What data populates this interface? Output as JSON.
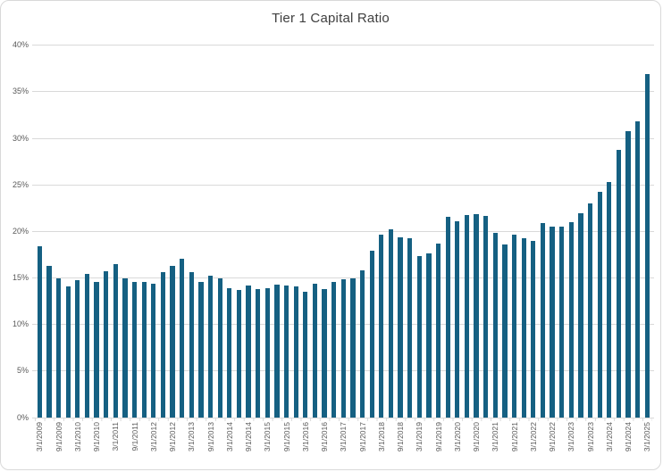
{
  "chart_data": {
    "type": "bar",
    "title": "Tier 1 Capital Ratio",
    "categories": [
      "3/1/2009",
      "6/1/2009",
      "9/1/2009",
      "12/1/2009",
      "3/1/2010",
      "6/1/2010",
      "9/1/2010",
      "12/1/2010",
      "3/1/2011",
      "6/1/2011",
      "9/1/2011",
      "12/1/2011",
      "3/1/2012",
      "6/1/2012",
      "9/1/2012",
      "12/1/2012",
      "3/1/2013",
      "6/1/2013",
      "9/1/2013",
      "12/1/2013",
      "3/1/2014",
      "6/1/2014",
      "9/1/2014",
      "12/1/2014",
      "3/1/2015",
      "6/1/2015",
      "9/1/2015",
      "12/1/2015",
      "3/1/2016",
      "6/1/2016",
      "9/1/2016",
      "12/1/2016",
      "3/1/2017",
      "6/1/2017",
      "9/1/2017",
      "12/1/2017",
      "3/1/2018",
      "6/1/2018",
      "9/1/2018",
      "12/1/2018",
      "3/1/2019",
      "6/1/2019",
      "9/1/2019",
      "12/1/2019",
      "3/1/2020",
      "6/1/2020",
      "9/1/2020",
      "12/1/2020",
      "3/1/2021",
      "6/1/2021",
      "9/1/2021",
      "12/1/2021",
      "3/1/2022",
      "6/1/2022",
      "9/1/2022",
      "12/1/2022",
      "3/1/2023",
      "6/1/2023",
      "9/1/2023",
      "12/1/2023",
      "3/1/2024",
      "6/1/2024",
      "9/1/2024",
      "12/1/2024",
      "3/1/2025"
    ],
    "values": [
      18.4,
      16.3,
      15.0,
      14.1,
      14.8,
      15.4,
      14.6,
      15.7,
      16.5,
      15.0,
      14.6,
      14.6,
      14.4,
      15.6,
      16.3,
      17.1,
      15.6,
      14.6,
      15.2,
      15.0,
      13.9,
      13.7,
      14.2,
      13.8,
      13.9,
      14.3,
      14.2,
      14.1,
      13.5,
      14.4,
      13.8,
      14.6,
      14.9,
      15.0,
      15.8,
      17.9,
      19.7,
      20.2,
      19.4,
      19.3,
      17.4,
      17.6,
      18.7,
      21.6,
      21.1,
      21.8,
      21.9,
      21.7,
      19.8,
      18.6,
      19.7,
      19.3,
      19.0,
      20.9,
      20.5,
      20.5,
      21.0,
      22.0,
      23.0,
      24.3,
      25.3,
      28.8,
      30.8,
      31.8,
      36.9
    ],
    "xlabel": "",
    "ylabel": "",
    "ylim": [
      0,
      40
    ],
    "y_tick_step": 5,
    "y_tick_labels": [
      "0%",
      "5%",
      "10%",
      "15%",
      "20%",
      "25%",
      "30%",
      "35%",
      "40%"
    ],
    "x_label_interval": 2,
    "grid": true,
    "legend_position": "none",
    "bar_color": "#156082",
    "gridline_color": "#D9D9D9",
    "axis_line_color": "#D9D9D9",
    "tick_color": "#D9D9D9",
    "axis_text_color": "#595959",
    "title_color": "#404040",
    "border_color": "#D9D9D9",
    "background_color": "#FFFFFF"
  }
}
